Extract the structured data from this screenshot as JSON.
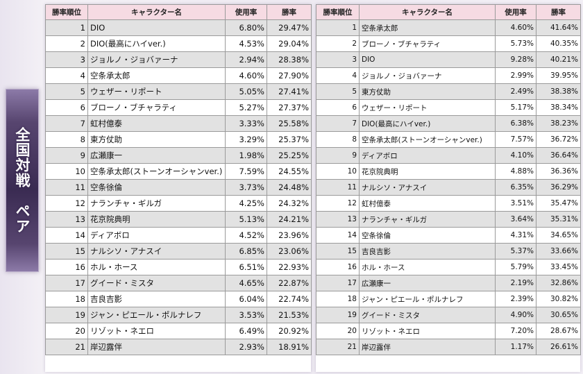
{
  "banner": {
    "text": "全国対戦　ペア"
  },
  "headers": {
    "rank": "勝率順位",
    "name": "キャラクター名",
    "usage": "使用率",
    "winrate": "勝率"
  },
  "left_table": {
    "rows": [
      {
        "rank": "1",
        "name": "DIO",
        "usage": "6.80%",
        "winrate": "29.47%"
      },
      {
        "rank": "2",
        "name": "DIO(最高にハイver.)",
        "usage": "4.53%",
        "winrate": "29.04%"
      },
      {
        "rank": "3",
        "name": "ジョルノ・ジョバァーナ",
        "usage": "2.94%",
        "winrate": "28.38%"
      },
      {
        "rank": "4",
        "name": "空条承太郎",
        "usage": "4.60%",
        "winrate": "27.90%"
      },
      {
        "rank": "5",
        "name": "ウェザー・リポート",
        "usage": "5.05%",
        "winrate": "27.41%"
      },
      {
        "rank": "6",
        "name": "ブローノ・ブチャラティ",
        "usage": "5.27%",
        "winrate": "27.37%"
      },
      {
        "rank": "7",
        "name": "虹村億泰",
        "usage": "3.33%",
        "winrate": "25.58%"
      },
      {
        "rank": "8",
        "name": "東方仗助",
        "usage": "3.29%",
        "winrate": "25.37%"
      },
      {
        "rank": "9",
        "name": "広瀬康一",
        "usage": "1.98%",
        "winrate": "25.25%"
      },
      {
        "rank": "10",
        "name": "空条承太郎(ストーンオーシャンver.)",
        "usage": "7.59%",
        "winrate": "24.55%"
      },
      {
        "rank": "11",
        "name": "空条徐倫",
        "usage": "3.73%",
        "winrate": "24.48%"
      },
      {
        "rank": "12",
        "name": "ナランチャ・ギルガ",
        "usage": "4.25%",
        "winrate": "24.32%"
      },
      {
        "rank": "13",
        "name": "花京院典明",
        "usage": "5.13%",
        "winrate": "24.21%"
      },
      {
        "rank": "14",
        "name": "ディアボロ",
        "usage": "4.52%",
        "winrate": "23.96%"
      },
      {
        "rank": "15",
        "name": "ナルシソ・アナスイ",
        "usage": "6.85%",
        "winrate": "23.06%"
      },
      {
        "rank": "16",
        "name": "ホル・ホース",
        "usage": "6.51%",
        "winrate": "22.93%"
      },
      {
        "rank": "17",
        "name": "グイード・ミスタ",
        "usage": "4.65%",
        "winrate": "22.87%"
      },
      {
        "rank": "18",
        "name": "吉良吉影",
        "usage": "6.04%",
        "winrate": "22.74%"
      },
      {
        "rank": "19",
        "name": "ジャン・ピエール・ポルナレフ",
        "usage": "3.53%",
        "winrate": "21.53%"
      },
      {
        "rank": "20",
        "name": "リゾット・ネエロ",
        "usage": "6.49%",
        "winrate": "20.92%"
      },
      {
        "rank": "21",
        "name": "岸辺露伴",
        "usage": "2.93%",
        "winrate": "18.91%"
      }
    ]
  },
  "right_table": {
    "rows": [
      {
        "rank": "1",
        "name": "空条承太郎",
        "usage": "4.60%",
        "winrate": "41.64%"
      },
      {
        "rank": "2",
        "name": "ブローノ・ブチャラティ",
        "usage": "5.73%",
        "winrate": "40.35%"
      },
      {
        "rank": "3",
        "name": "DIO",
        "usage": "9.28%",
        "winrate": "40.21%"
      },
      {
        "rank": "4",
        "name": "ジョルノ・ジョバァーナ",
        "usage": "2.99%",
        "winrate": "39.95%"
      },
      {
        "rank": "5",
        "name": "東方仗助",
        "usage": "2.49%",
        "winrate": "38.38%"
      },
      {
        "rank": "6",
        "name": "ウェザー・リポート",
        "usage": "5.17%",
        "winrate": "38.34%"
      },
      {
        "rank": "7",
        "name": "DIO(最高にハイver.)",
        "usage": "6.38%",
        "winrate": "38.23%"
      },
      {
        "rank": "8",
        "name": "空条承太郎(ストーンオーシャンver.)",
        "usage": "7.57%",
        "winrate": "36.72%"
      },
      {
        "rank": "9",
        "name": "ディアボロ",
        "usage": "4.10%",
        "winrate": "36.64%"
      },
      {
        "rank": "10",
        "name": "花京院典明",
        "usage": "4.88%",
        "winrate": "36.36%"
      },
      {
        "rank": "11",
        "name": "ナルシソ・アナスイ",
        "usage": "6.35%",
        "winrate": "36.29%"
      },
      {
        "rank": "12",
        "name": "虹村億泰",
        "usage": "3.51%",
        "winrate": "35.47%"
      },
      {
        "rank": "13",
        "name": "ナランチャ・ギルガ",
        "usage": "3.64%",
        "winrate": "35.31%"
      },
      {
        "rank": "14",
        "name": "空条徐倫",
        "usage": "4.31%",
        "winrate": "34.65%"
      },
      {
        "rank": "15",
        "name": "吉良吉影",
        "usage": "5.37%",
        "winrate": "33.66%"
      },
      {
        "rank": "16",
        "name": "ホル・ホース",
        "usage": "5.79%",
        "winrate": "33.45%"
      },
      {
        "rank": "17",
        "name": "広瀬康一",
        "usage": "2.19%",
        "winrate": "32.86%"
      },
      {
        "rank": "18",
        "name": "ジャン・ピエール・ポルナレフ",
        "usage": "2.39%",
        "winrate": "30.82%"
      },
      {
        "rank": "19",
        "name": "グイード・ミスタ",
        "usage": "4.90%",
        "winrate": "30.65%"
      },
      {
        "rank": "20",
        "name": "リゾット・ネエロ",
        "usage": "7.20%",
        "winrate": "28.67%"
      },
      {
        "rank": "21",
        "name": "岸辺露伴",
        "usage": "1.17%",
        "winrate": "26.61%"
      }
    ]
  }
}
